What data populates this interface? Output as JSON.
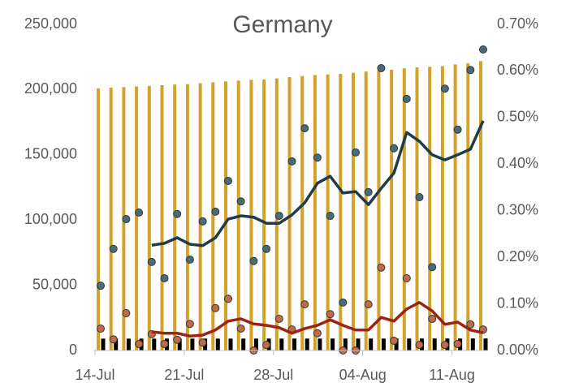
{
  "chart_data": {
    "type": "combo",
    "title": "Germany",
    "categories": [
      "14-Jul",
      null,
      null,
      null,
      null,
      null,
      null,
      "21-Jul",
      null,
      null,
      null,
      null,
      null,
      null,
      "28-Jul",
      null,
      null,
      null,
      null,
      null,
      null,
      "04-Aug",
      null,
      null,
      null,
      null,
      null,
      null,
      "11-Aug",
      null,
      null
    ],
    "ylim": [
      0,
      250000
    ],
    "yticks": [
      0,
      {
        "value": 50000,
        "label": "50,000"
      },
      {
        "value": 100000,
        "label": "100,000"
      },
      {
        "value": 150000,
        "label": "150,000"
      },
      {
        "value": 200000,
        "label": "200,000"
      },
      {
        "value": 250000,
        "label": "250,000"
      }
    ],
    "y2lim": [
      0,
      0.7
    ],
    "y2ticks": [
      {
        "value": 0,
        "label": "0.00%"
      },
      {
        "value": 0.1,
        "label": "0.10%"
      },
      {
        "value": 0.2,
        "label": "0.20%"
      },
      {
        "value": 0.3,
        "label": "0.30%"
      },
      {
        "value": 0.4,
        "label": "0.40%"
      },
      {
        "value": 0.5,
        "label": "0.50%"
      },
      {
        "value": 0.6,
        "label": "0.60%"
      },
      {
        "value": 0.7,
        "label": "0.70%"
      }
    ],
    "series": [
      {
        "type": "bar",
        "color": "#d4a22a",
        "values": [
          200890,
          201450,
          201920,
          202430,
          202800,
          203370,
          203890,
          204180,
          204880,
          205620,
          206230,
          206930,
          207480,
          207750,
          208540,
          209520,
          210400,
          211160,
          211650,
          212060,
          212910,
          213850,
          214630,
          215250,
          216330,
          217010,
          217460,
          218000,
          219270,
          220200,
          221850
        ]
      },
      {
        "type": "bar",
        "color": "#000000",
        "values": [
          9090,
          9090,
          9095,
          9100,
          9100,
          9105,
          9110,
          9110,
          9115,
          9120,
          9125,
          9130,
          9130,
          9130,
          9135,
          9140,
          9145,
          9150,
          9155,
          9160,
          9160,
          9165,
          9170,
          9175,
          9180,
          9185,
          9190,
          9195,
          9200,
          9210,
          9220
        ]
      },
      {
        "type": "scatter",
        "axis": "y2",
        "color": "#4a6b75",
        "values": [
          0.139,
          0.218,
          0.282,
          0.296,
          0.19,
          0.155,
          0.293,
          0.195,
          0.277,
          0.298,
          0.364,
          0.32,
          0.192,
          0.218,
          0.289,
          0.406,
          0.477,
          0.414,
          0.289,
          0.103,
          0.425,
          0.34,
          0.606,
          0.434,
          0.54,
          0.329,
          0.179,
          0.562,
          0.474,
          0.602,
          0.646
        ]
      },
      {
        "type": "line",
        "axis": "y2",
        "color": "#1f3d48",
        "values": [
          null,
          null,
          null,
          null,
          0.226,
          0.23,
          0.242,
          0.228,
          0.225,
          0.242,
          0.282,
          0.289,
          0.286,
          0.273,
          0.273,
          0.291,
          0.317,
          0.359,
          0.374,
          0.338,
          0.341,
          0.313,
          0.348,
          0.381,
          0.468,
          0.449,
          0.42,
          0.409,
          0.42,
          0.432,
          0.493
        ]
      },
      {
        "type": "scatter",
        "axis": "y2",
        "color": "#c06a4a",
        "values": [
          0.047,
          0.024,
          0.08,
          0.014,
          0.035,
          0.014,
          0.023,
          0.057,
          0.017,
          0.091,
          0.111,
          0.047,
          0,
          0.012,
          0.068,
          0.045,
          0.099,
          0.037,
          0.078,
          0,
          0,
          0.099,
          0.178,
          0.021,
          0.155,
          0.012,
          0.068,
          0.012,
          0.014,
          0.056,
          0.045
        ]
      },
      {
        "type": "line",
        "axis": "y2",
        "color": "#9a2410",
        "values": [
          null,
          null,
          null,
          null,
          0.04,
          0.037,
          0.037,
          0.031,
          0.033,
          0.044,
          0.063,
          0.068,
          0.057,
          0.054,
          0.049,
          0.037,
          0.047,
          0.054,
          0.066,
          0.054,
          0.044,
          0.044,
          0.071,
          0.063,
          0.089,
          0.103,
          0.085,
          0.056,
          0.061,
          0.044,
          0.038
        ]
      }
    ]
  }
}
